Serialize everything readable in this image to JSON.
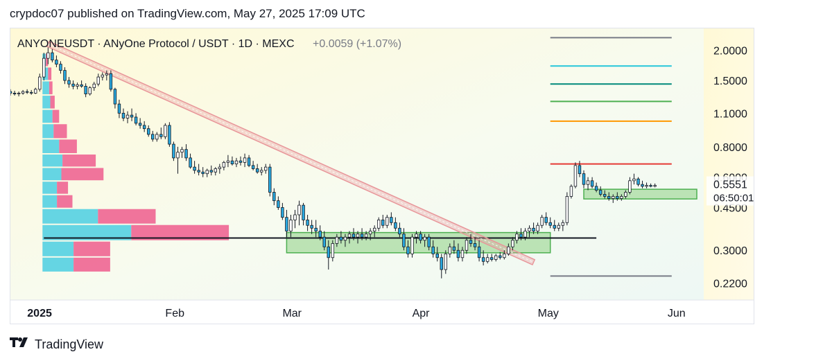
{
  "header": {
    "text": "crypdoc07 published on TradingView.com, May 27, 2025 17:09 UTC"
  },
  "footer": {
    "brand": "TradingView",
    "logo_icon": "tradingview-logo-icon"
  },
  "chart_data": {
    "type": "candlestick",
    "symbol_line": "ANYONEUSDT · ANyOne Protocol / USDT · 1D · MEXC",
    "change": "+0.0059 (+1.07%)",
    "colors": {
      "up": "#ffffff",
      "down": "#29a9e0",
      "wick": "#131722",
      "trendline": "#e8969a",
      "zone_fill": "#a8dba0",
      "zone_border": "#4caf50",
      "vp_blue": "#5dd3e3",
      "vp_pink": "#ef6d97",
      "black_line": "#131722"
    },
    "y_axis": {
      "scale": "log",
      "range": [
        0.2,
        2.3
      ],
      "ticks": [
        "2.0000",
        "1.5000",
        "1.1000",
        "0.8000",
        "0.6000",
        "0.4500",
        "0.3000",
        "0.2200"
      ],
      "tick_values": [
        2.0,
        1.5,
        1.1,
        0.8,
        0.6,
        0.45,
        0.3,
        0.22
      ]
    },
    "x_axis": {
      "labels": [
        "2025",
        "Feb",
        "Mar",
        "Apr",
        "May",
        "Jun"
      ],
      "label_dates": [
        "2025-01-01",
        "2025-02-01",
        "2025-03-01",
        "2025-04-01",
        "2025-05-01",
        "2025-06-01"
      ],
      "range": [
        "2024-12-24",
        "2025-06-06"
      ]
    },
    "price_label": {
      "value": "0.5551",
      "countdown": "06:50:01"
    },
    "target_levels": [
      {
        "value": 2.25,
        "color": "#787b86"
      },
      {
        "value": 1.72,
        "color": "#26c6da"
      },
      {
        "value": 1.45,
        "color": "#00897b"
      },
      {
        "value": 1.23,
        "color": "#4caf50"
      },
      {
        "value": 1.02,
        "color": "#ff9800"
      },
      {
        "value": 0.68,
        "color": "#e53935"
      },
      {
        "value": 0.235,
        "color": "#787b86"
      }
    ],
    "target_levels_date_range": [
      "2025-05-02",
      "2025-05-31"
    ],
    "support_zones": [
      {
        "date_start": "2025-02-28",
        "date_end": "2025-05-02",
        "low": 0.293,
        "high": 0.355
      },
      {
        "date_start": "2025-05-10",
        "date_end": "2025-06-06",
        "low": 0.488,
        "high": 0.535
      }
    ],
    "horizontal_line": {
      "value": 0.337,
      "date_start": "2025-01-01",
      "date_end": "2025-05-13"
    },
    "trendline": {
      "start": [
        "2025-01-02",
        2.12
      ],
      "end": [
        "2025-04-28",
        0.268
      ]
    },
    "volume_profile": [
      {
        "price": 1.82,
        "blue": 3,
        "pink": 2
      },
      {
        "price": 1.6,
        "blue": 5,
        "pink": 3
      },
      {
        "price": 1.4,
        "blue": 6,
        "pink": 3
      },
      {
        "price": 1.22,
        "blue": 7,
        "pink": 4
      },
      {
        "price": 1.07,
        "blue": 9,
        "pink": 6
      },
      {
        "price": 0.93,
        "blue": 10,
        "pink": 12
      },
      {
        "price": 0.8,
        "blue": 15,
        "pink": 16
      },
      {
        "price": 0.7,
        "blue": 18,
        "pink": 30
      },
      {
        "price": 0.62,
        "blue": 17,
        "pink": 38
      },
      {
        "price": 0.54,
        "blue": 13,
        "pink": 10
      },
      {
        "price": 0.48,
        "blue": 13,
        "pink": 14
      },
      {
        "price": 0.415,
        "blue": 50,
        "pink": 52
      },
      {
        "price": 0.355,
        "blue": 80,
        "pink": 88
      },
      {
        "price": 0.303,
        "blue": 28,
        "pink": 33
      },
      {
        "price": 0.262,
        "blue": 28,
        "pink": 33
      }
    ],
    "candles": [
      [
        "2024-12-24",
        1.35,
        1.38,
        1.3,
        1.33
      ],
      [
        "2024-12-25",
        1.33,
        1.36,
        1.3,
        1.32
      ],
      [
        "2024-12-26",
        1.32,
        1.35,
        1.29,
        1.33
      ],
      [
        "2024-12-27",
        1.33,
        1.37,
        1.31,
        1.35
      ],
      [
        "2024-12-28",
        1.35,
        1.38,
        1.32,
        1.34
      ],
      [
        "2024-12-29",
        1.34,
        1.37,
        1.31,
        1.33
      ],
      [
        "2024-12-30",
        1.33,
        1.4,
        1.32,
        1.38
      ],
      [
        "2024-12-31",
        1.38,
        1.6,
        1.35,
        1.55
      ],
      [
        "2025-01-01",
        1.55,
        1.95,
        1.5,
        1.85
      ],
      [
        "2025-01-02",
        1.85,
        2.05,
        1.75,
        1.95
      ],
      [
        "2025-01-03",
        1.95,
        2.02,
        1.78,
        1.82
      ],
      [
        "2025-01-04",
        1.82,
        1.9,
        1.7,
        1.75
      ],
      [
        "2025-01-05",
        1.75,
        1.8,
        1.6,
        1.65
      ],
      [
        "2025-01-06",
        1.65,
        1.7,
        1.45,
        1.5
      ],
      [
        "2025-01-07",
        1.5,
        1.55,
        1.4,
        1.45
      ],
      [
        "2025-01-08",
        1.45,
        1.5,
        1.38,
        1.42
      ],
      [
        "2025-01-09",
        1.42,
        1.47,
        1.38,
        1.44
      ],
      [
        "2025-01-10",
        1.44,
        1.5,
        1.4,
        1.42
      ],
      [
        "2025-01-11",
        1.42,
        1.46,
        1.28,
        1.32
      ],
      [
        "2025-01-12",
        1.32,
        1.42,
        1.3,
        1.4
      ],
      [
        "2025-01-13",
        1.4,
        1.48,
        1.36,
        1.45
      ],
      [
        "2025-01-14",
        1.45,
        1.6,
        1.42,
        1.55
      ],
      [
        "2025-01-15",
        1.55,
        1.62,
        1.5,
        1.58
      ],
      [
        "2025-01-16",
        1.58,
        1.65,
        1.5,
        1.6
      ],
      [
        "2025-01-17",
        1.6,
        1.65,
        1.35,
        1.38
      ],
      [
        "2025-01-18",
        1.38,
        1.4,
        1.15,
        1.2
      ],
      [
        "2025-01-19",
        1.2,
        1.25,
        1.05,
        1.1
      ],
      [
        "2025-01-20",
        1.1,
        1.15,
        1.02,
        1.05
      ],
      [
        "2025-01-21",
        1.05,
        1.12,
        1.0,
        1.08
      ],
      [
        "2025-01-22",
        1.08,
        1.15,
        1.02,
        1.06
      ],
      [
        "2025-01-23",
        1.06,
        1.1,
        0.98,
        1.0
      ],
      [
        "2025-01-24",
        1.0,
        1.05,
        0.95,
        0.98
      ],
      [
        "2025-01-25",
        0.98,
        1.02,
        0.92,
        0.95
      ],
      [
        "2025-01-26",
        0.95,
        0.98,
        0.88,
        0.9
      ],
      [
        "2025-01-27",
        0.9,
        0.93,
        0.84,
        0.86
      ],
      [
        "2025-01-28",
        0.86,
        0.92,
        0.84,
        0.9
      ],
      [
        "2025-01-29",
        0.9,
        0.96,
        0.86,
        0.88
      ],
      [
        "2025-01-30",
        0.88,
        1.0,
        0.86,
        0.98
      ],
      [
        "2025-01-31",
        0.98,
        1.01,
        0.8,
        0.82
      ],
      [
        "2025-02-01",
        0.82,
        0.84,
        0.7,
        0.72
      ],
      [
        "2025-02-02",
        0.72,
        0.8,
        0.62,
        0.76
      ],
      [
        "2025-02-03",
        0.76,
        0.8,
        0.72,
        0.78
      ],
      [
        "2025-02-04",
        0.78,
        0.82,
        0.7,
        0.72
      ],
      [
        "2025-02-05",
        0.72,
        0.75,
        0.65,
        0.66
      ],
      [
        "2025-02-06",
        0.66,
        0.7,
        0.62,
        0.64
      ],
      [
        "2025-02-07",
        0.64,
        0.68,
        0.61,
        0.63
      ],
      [
        "2025-02-08",
        0.63,
        0.66,
        0.6,
        0.62
      ],
      [
        "2025-02-09",
        0.62,
        0.65,
        0.6,
        0.64
      ],
      [
        "2025-02-10",
        0.64,
        0.67,
        0.61,
        0.63
      ],
      [
        "2025-02-11",
        0.63,
        0.66,
        0.61,
        0.65
      ],
      [
        "2025-02-12",
        0.65,
        0.68,
        0.62,
        0.66
      ],
      [
        "2025-02-13",
        0.66,
        0.7,
        0.64,
        0.69
      ],
      [
        "2025-02-14",
        0.69,
        0.74,
        0.66,
        0.7
      ],
      [
        "2025-02-15",
        0.7,
        0.73,
        0.67,
        0.68
      ],
      [
        "2025-02-16",
        0.68,
        0.72,
        0.66,
        0.7
      ],
      [
        "2025-02-17",
        0.7,
        0.73,
        0.67,
        0.69
      ],
      [
        "2025-02-18",
        0.69,
        0.75,
        0.66,
        0.72
      ],
      [
        "2025-02-19",
        0.72,
        0.74,
        0.66,
        0.67
      ],
      [
        "2025-02-20",
        0.67,
        0.7,
        0.64,
        0.65
      ],
      [
        "2025-02-21",
        0.65,
        0.68,
        0.62,
        0.63
      ],
      [
        "2025-02-22",
        0.63,
        0.66,
        0.61,
        0.64
      ],
      [
        "2025-02-23",
        0.64,
        0.68,
        0.62,
        0.66
      ],
      [
        "2025-02-24",
        0.66,
        0.68,
        0.5,
        0.52
      ],
      [
        "2025-02-25",
        0.52,
        0.54,
        0.46,
        0.48
      ],
      [
        "2025-02-26",
        0.48,
        0.5,
        0.44,
        0.45
      ],
      [
        "2025-02-27",
        0.45,
        0.47,
        0.4,
        0.41
      ],
      [
        "2025-02-28",
        0.41,
        0.44,
        0.34,
        0.36
      ],
      [
        "2025-03-01",
        0.36,
        0.42,
        0.34,
        0.4
      ],
      [
        "2025-03-02",
        0.4,
        0.44,
        0.37,
        0.42
      ],
      [
        "2025-03-03",
        0.42,
        0.48,
        0.38,
        0.46
      ],
      [
        "2025-03-04",
        0.46,
        0.47,
        0.38,
        0.4
      ],
      [
        "2025-03-05",
        0.4,
        0.42,
        0.36,
        0.38
      ],
      [
        "2025-03-06",
        0.38,
        0.4,
        0.35,
        0.37
      ],
      [
        "2025-03-07",
        0.37,
        0.4,
        0.34,
        0.36
      ],
      [
        "2025-03-08",
        0.36,
        0.38,
        0.33,
        0.34
      ],
      [
        "2025-03-09",
        0.34,
        0.36,
        0.3,
        0.31
      ],
      [
        "2025-03-10",
        0.31,
        0.33,
        0.25,
        0.28
      ],
      [
        "2025-03-11",
        0.28,
        0.33,
        0.27,
        0.32
      ],
      [
        "2025-03-12",
        0.32,
        0.35,
        0.31,
        0.34
      ],
      [
        "2025-03-13",
        0.34,
        0.36,
        0.32,
        0.33
      ],
      [
        "2025-03-14",
        0.33,
        0.35,
        0.31,
        0.34
      ],
      [
        "2025-03-15",
        0.34,
        0.36,
        0.32,
        0.35
      ],
      [
        "2025-03-16",
        0.35,
        0.37,
        0.33,
        0.34
      ],
      [
        "2025-03-17",
        0.34,
        0.36,
        0.32,
        0.35
      ],
      [
        "2025-03-18",
        0.35,
        0.37,
        0.33,
        0.34
      ],
      [
        "2025-03-19",
        0.34,
        0.36,
        0.33,
        0.35
      ],
      [
        "2025-03-20",
        0.35,
        0.37,
        0.33,
        0.36
      ],
      [
        "2025-03-21",
        0.36,
        0.38,
        0.34,
        0.37
      ],
      [
        "2025-03-22",
        0.37,
        0.41,
        0.36,
        0.4
      ],
      [
        "2025-03-23",
        0.4,
        0.42,
        0.37,
        0.38
      ],
      [
        "2025-03-24",
        0.38,
        0.42,
        0.37,
        0.41
      ],
      [
        "2025-03-25",
        0.41,
        0.43,
        0.38,
        0.39
      ],
      [
        "2025-03-26",
        0.39,
        0.41,
        0.36,
        0.37
      ],
      [
        "2025-03-27",
        0.37,
        0.39,
        0.34,
        0.35
      ],
      [
        "2025-03-28",
        0.35,
        0.37,
        0.3,
        0.31
      ],
      [
        "2025-03-29",
        0.31,
        0.33,
        0.28,
        0.29
      ],
      [
        "2025-03-30",
        0.29,
        0.35,
        0.28,
        0.34
      ],
      [
        "2025-03-31",
        0.34,
        0.36,
        0.32,
        0.35
      ],
      [
        "2025-04-01",
        0.35,
        0.36,
        0.32,
        0.33
      ],
      [
        "2025-04-02",
        0.33,
        0.35,
        0.31,
        0.34
      ],
      [
        "2025-04-03",
        0.34,
        0.35,
        0.3,
        0.31
      ],
      [
        "2025-04-04",
        0.31,
        0.33,
        0.28,
        0.29
      ],
      [
        "2025-04-05",
        0.29,
        0.31,
        0.27,
        0.28
      ],
      [
        "2025-04-06",
        0.28,
        0.29,
        0.23,
        0.25
      ],
      [
        "2025-04-07",
        0.25,
        0.3,
        0.24,
        0.29
      ],
      [
        "2025-04-08",
        0.29,
        0.32,
        0.28,
        0.31
      ],
      [
        "2025-04-09",
        0.31,
        0.33,
        0.29,
        0.3
      ],
      [
        "2025-04-10",
        0.3,
        0.32,
        0.27,
        0.28
      ],
      [
        "2025-04-11",
        0.28,
        0.31,
        0.27,
        0.3
      ],
      [
        "2025-04-12",
        0.3,
        0.34,
        0.29,
        0.33
      ],
      [
        "2025-04-13",
        0.33,
        0.35,
        0.31,
        0.32
      ],
      [
        "2025-04-14",
        0.32,
        0.34,
        0.3,
        0.31
      ],
      [
        "2025-04-15",
        0.31,
        0.33,
        0.27,
        0.28
      ],
      [
        "2025-04-16",
        0.28,
        0.3,
        0.26,
        0.27
      ],
      [
        "2025-04-17",
        0.27,
        0.29,
        0.265,
        0.28
      ],
      [
        "2025-04-18",
        0.28,
        0.29,
        0.27,
        0.275
      ],
      [
        "2025-04-19",
        0.275,
        0.29,
        0.27,
        0.285
      ],
      [
        "2025-04-20",
        0.285,
        0.295,
        0.275,
        0.28
      ],
      [
        "2025-04-21",
        0.28,
        0.3,
        0.275,
        0.29
      ],
      [
        "2025-04-22",
        0.29,
        0.32,
        0.285,
        0.31
      ],
      [
        "2025-04-23",
        0.31,
        0.34,
        0.3,
        0.33
      ],
      [
        "2025-04-24",
        0.33,
        0.36,
        0.32,
        0.35
      ],
      [
        "2025-04-25",
        0.35,
        0.37,
        0.33,
        0.34
      ],
      [
        "2025-04-26",
        0.34,
        0.37,
        0.33,
        0.36
      ],
      [
        "2025-04-27",
        0.36,
        0.38,
        0.34,
        0.37
      ],
      [
        "2025-04-28",
        0.37,
        0.39,
        0.35,
        0.36
      ],
      [
        "2025-04-29",
        0.36,
        0.39,
        0.35,
        0.38
      ],
      [
        "2025-04-30",
        0.38,
        0.42,
        0.37,
        0.41
      ],
      [
        "2025-05-01",
        0.41,
        0.43,
        0.38,
        0.39
      ],
      [
        "2025-05-02",
        0.39,
        0.41,
        0.37,
        0.38
      ],
      [
        "2025-05-03",
        0.38,
        0.4,
        0.36,
        0.37
      ],
      [
        "2025-05-04",
        0.37,
        0.39,
        0.36,
        0.38
      ],
      [
        "2025-05-05",
        0.38,
        0.4,
        0.36,
        0.39
      ],
      [
        "2025-05-06",
        0.39,
        0.52,
        0.38,
        0.5
      ],
      [
        "2025-05-07",
        0.5,
        0.56,
        0.49,
        0.55
      ],
      [
        "2025-05-08",
        0.55,
        0.69,
        0.54,
        0.67
      ],
      [
        "2025-05-09",
        0.67,
        0.7,
        0.6,
        0.62
      ],
      [
        "2025-05-10",
        0.62,
        0.64,
        0.54,
        0.56
      ],
      [
        "2025-05-11",
        0.56,
        0.6,
        0.53,
        0.58
      ],
      [
        "2025-05-12",
        0.58,
        0.6,
        0.54,
        0.55
      ],
      [
        "2025-05-13",
        0.55,
        0.57,
        0.52,
        0.53
      ],
      [
        "2025-05-14",
        0.53,
        0.55,
        0.5,
        0.51
      ],
      [
        "2025-05-15",
        0.51,
        0.53,
        0.49,
        0.5
      ],
      [
        "2025-05-16",
        0.5,
        0.52,
        0.48,
        0.49
      ],
      [
        "2025-05-17",
        0.49,
        0.51,
        0.47,
        0.5
      ],
      [
        "2025-05-18",
        0.5,
        0.52,
        0.48,
        0.49
      ],
      [
        "2025-05-19",
        0.49,
        0.51,
        0.48,
        0.5
      ],
      [
        "2025-05-20",
        0.5,
        0.53,
        0.49,
        0.52
      ],
      [
        "2025-05-21",
        0.52,
        0.6,
        0.51,
        0.58
      ],
      [
        "2025-05-22",
        0.58,
        0.62,
        0.56,
        0.59
      ],
      [
        "2025-05-23",
        0.59,
        0.6,
        0.55,
        0.56
      ],
      [
        "2025-05-24",
        0.56,
        0.58,
        0.54,
        0.55
      ],
      [
        "2025-05-25",
        0.55,
        0.57,
        0.54,
        0.555
      ],
      [
        "2025-05-26",
        0.555,
        0.565,
        0.545,
        0.55
      ],
      [
        "2025-05-27",
        0.55,
        0.565,
        0.545,
        0.5551
      ]
    ]
  }
}
